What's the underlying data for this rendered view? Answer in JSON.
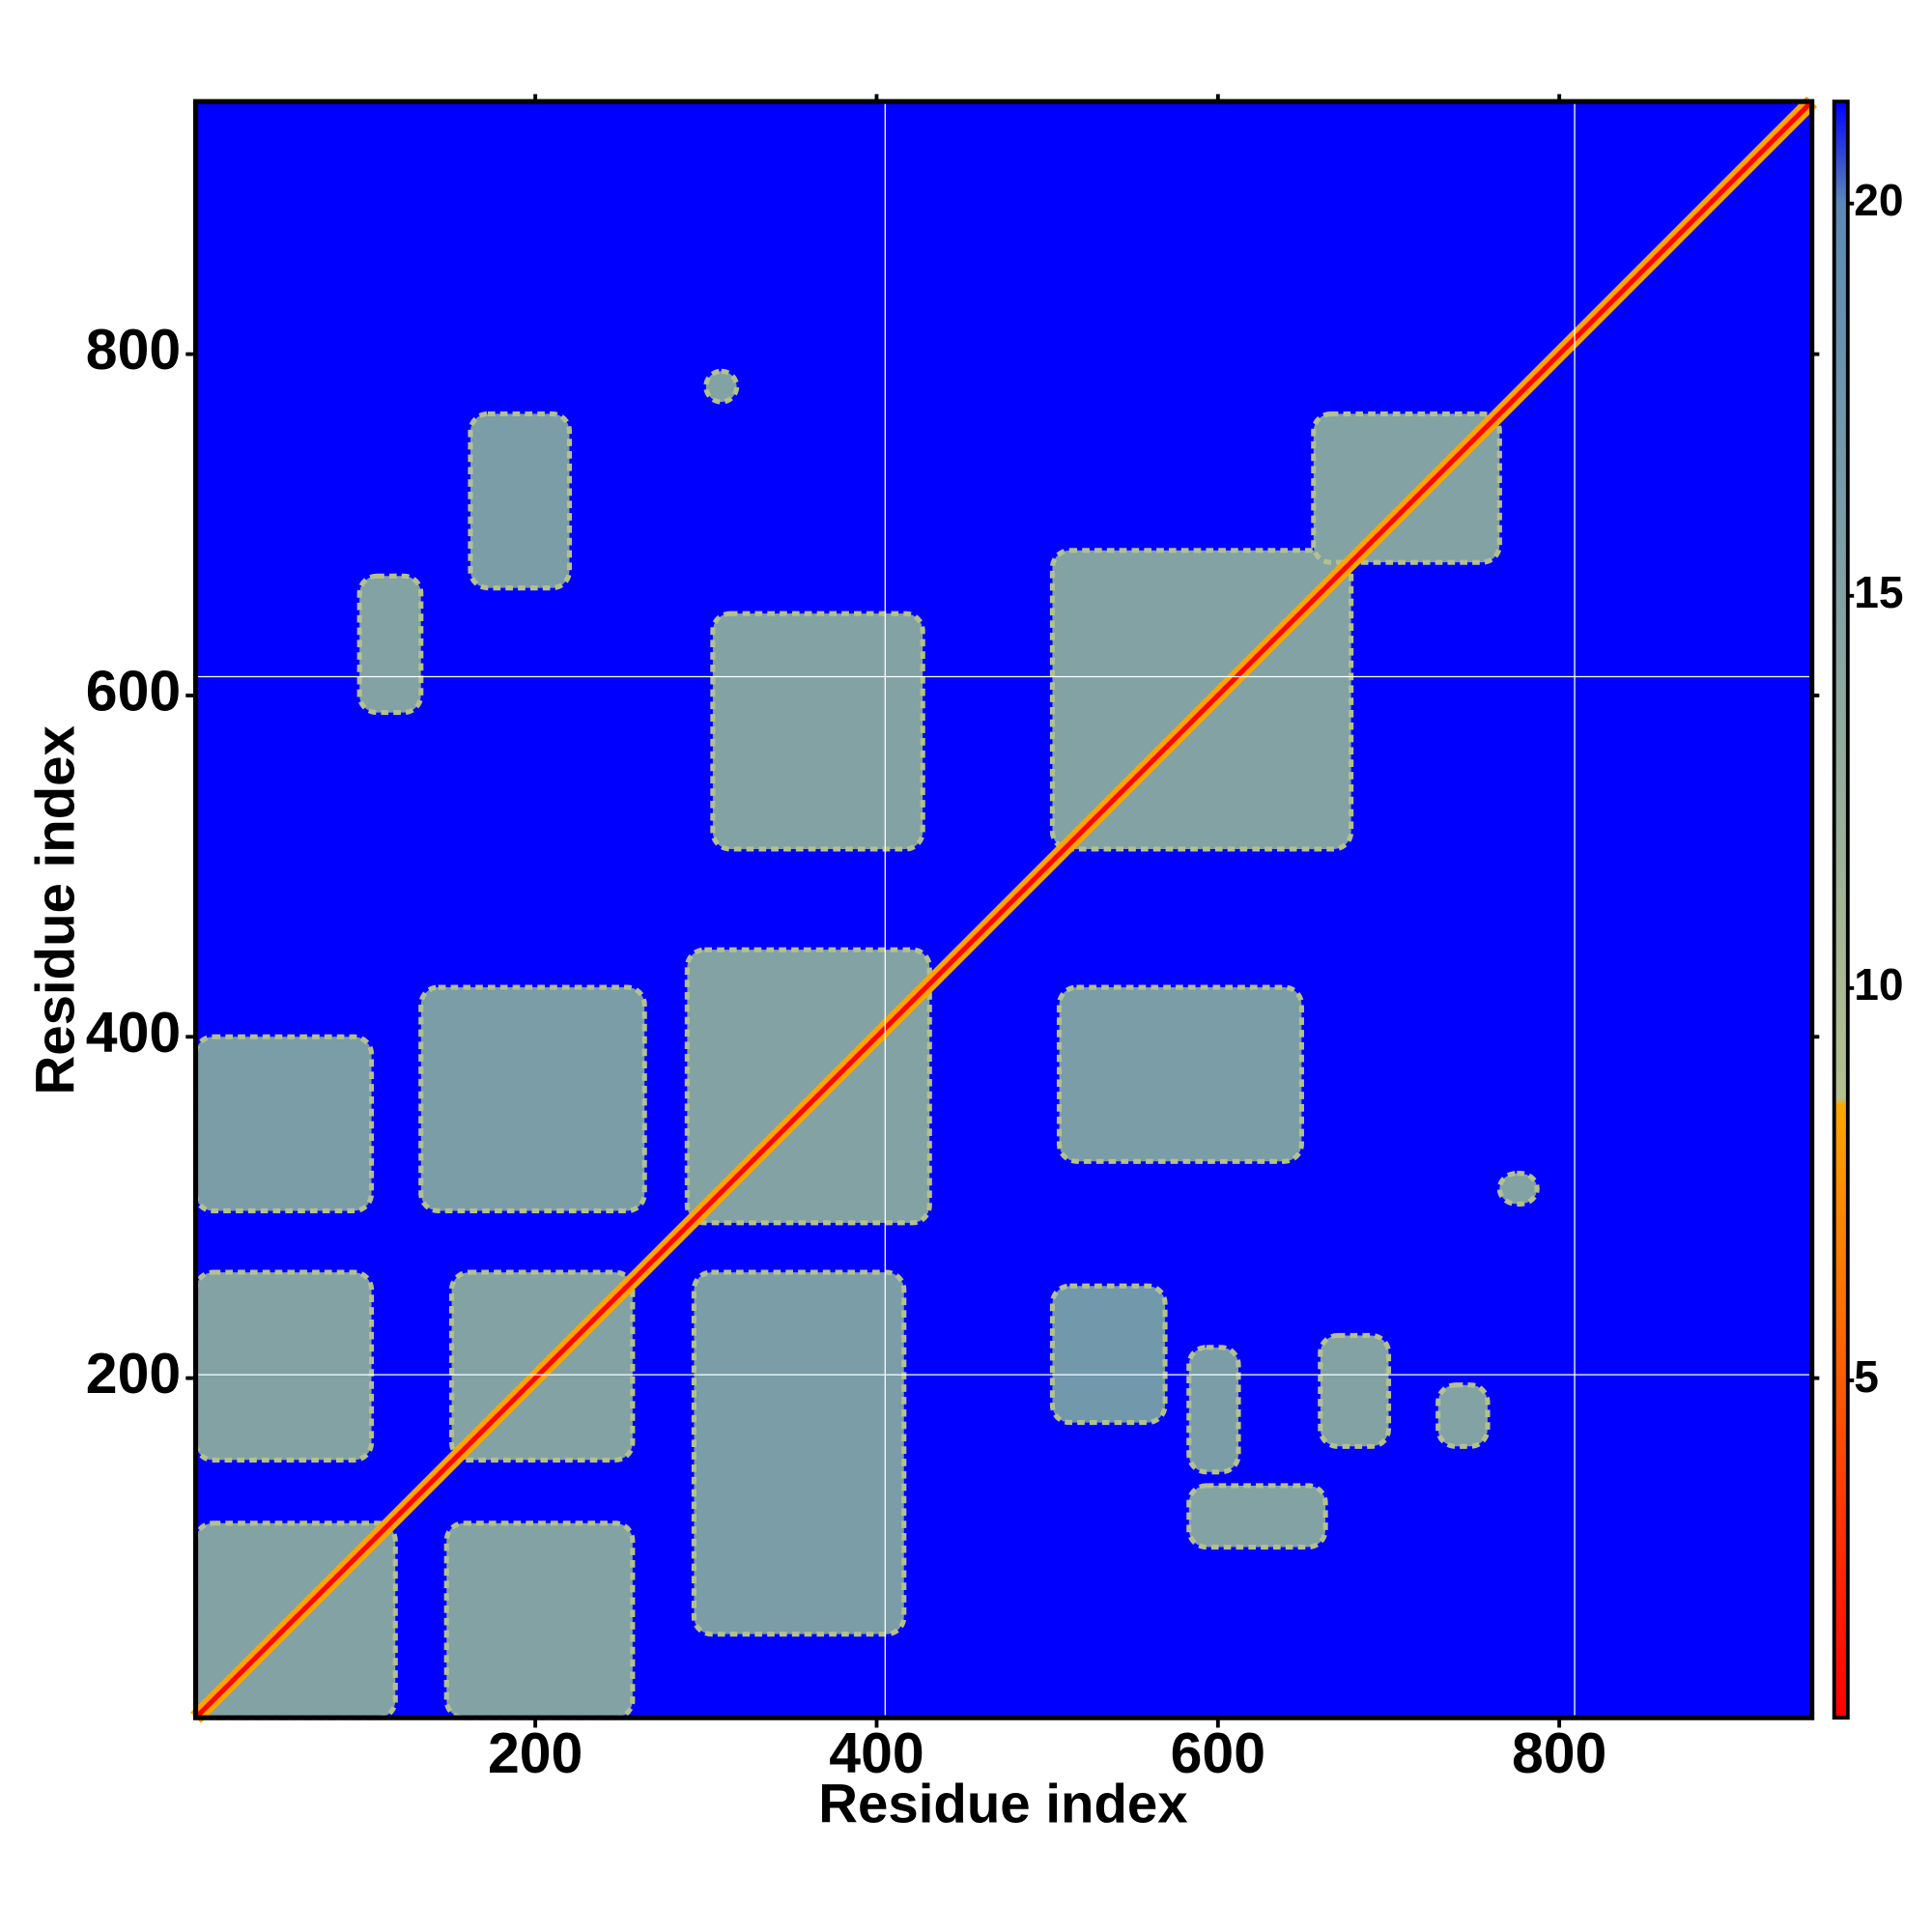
{
  "chart_data": {
    "type": "contact-map",
    "xlabel": "Residue index",
    "ylabel": "Residue index",
    "xlim": [
      1,
      948
    ],
    "ylim": [
      1,
      948
    ],
    "xticks": [
      200,
      400,
      600,
      800
    ],
    "yticks": [
      200,
      400,
      600,
      800
    ],
    "boundaries_x": [
      405,
      809
    ],
    "boundaries_y": [
      202,
      611
    ],
    "clim": [
      0.7,
      21.3
    ],
    "cticks": [
      5,
      10,
      15,
      20
    ],
    "colorscale": [
      [
        0.7,
        "#ff0000"
      ],
      [
        8.5,
        "#ffa500"
      ],
      [
        8.6,
        "#b4c08e"
      ],
      [
        20,
        "#5b8ab5"
      ],
      [
        21.3,
        "#0000ff"
      ]
    ],
    "background_value": 21.3,
    "diagonal": {
      "from": 1,
      "to": 948,
      "value": 1
    },
    "regions": [
      {
        "x": [
          1,
          118
        ],
        "y": [
          1,
          115
        ],
        "value": 15
      },
      {
        "x": [
          1,
          104
        ],
        "y": [
          152,
          262
        ],
        "value": 15
      },
      {
        "x": [
          148,
          257
        ],
        "y": [
          1,
          115
        ],
        "value": 15
      },
      {
        "x": [
          151,
          257
        ],
        "y": [
          152,
          262
        ],
        "value": 15
      },
      {
        "x": [
          293,
          416
        ],
        "y": [
          50,
          262
        ],
        "value": 16
      },
      {
        "x": [
          1,
          104
        ],
        "y": [
          298,
          400
        ],
        "value": 16
      },
      {
        "x": [
          133,
          264
        ],
        "y": [
          298,
          429
        ],
        "value": 16
      },
      {
        "x": [
          289,
          431
        ],
        "y": [
          291,
          451
        ],
        "value": 15
      },
      {
        "x": [
          304,
          427
        ],
        "y": [
          510,
          648
        ],
        "value": 15
      },
      {
        "x": [
          503,
          678
        ],
        "y": [
          510,
          685
        ],
        "value": 15
      },
      {
        "x": [
          656,
          765
        ],
        "y": [
          678,
          765
        ],
        "value": 15
      },
      {
        "x": [
          507,
          649
        ],
        "y": [
          327,
          429
        ],
        "value": 16
      },
      {
        "x": [
          162,
          220
        ],
        "y": [
          663,
          765
        ],
        "value": 16
      },
      {
        "x": [
          97,
          133
        ],
        "y": [
          590,
          670
        ],
        "value": 15
      },
      {
        "x": [
          583,
          663
        ],
        "y": [
          101,
          137
        ],
        "value": 15
      },
      {
        "x": [
          583,
          612
        ],
        "y": [
          145,
          218
        ],
        "value": 16
      },
      {
        "x": [
          660,
          700
        ],
        "y": [
          160,
          225
        ],
        "value": 15
      },
      {
        "x": [
          729,
          758
        ],
        "y": [
          160,
          196
        ],
        "value": 15
      },
      {
        "x": [
          503,
          569
        ],
        "y": [
          174,
          254
        ],
        "value": 17
      },
      {
        "x": [
          765,
          787
        ],
        "y": [
          302,
          320
        ],
        "value": 15
      },
      {
        "x": [
          300,
          318
        ],
        "y": [
          772,
          790
        ],
        "value": 15
      }
    ]
  }
}
